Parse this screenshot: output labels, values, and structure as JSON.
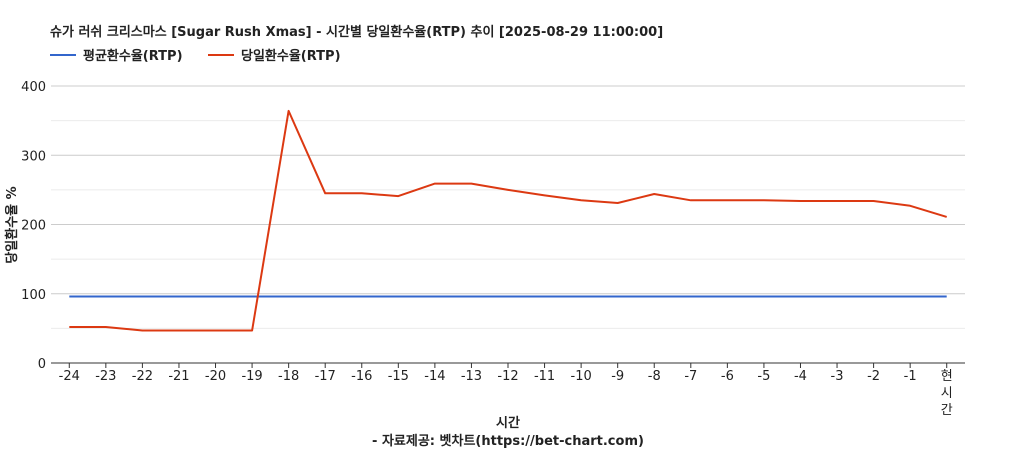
{
  "chart_data": {
    "type": "line",
    "title": "슈가 러쉬 크리스마스 [Sugar Rush Xmas] - 시간별 당일환수율(RTP) 추이 [2025-08-29 11:00:00]",
    "xlabel": "시간",
    "xlabel_sub": "- 자료제공: 벳차트(https://bet-chart.com)",
    "ylabel": "당일환수율 %",
    "ylim": [
      0,
      400
    ],
    "yticks": [
      0,
      100,
      200,
      300,
      400
    ],
    "grid": true,
    "legend_position": "top-left",
    "categories": [
      "-24",
      "-23",
      "-22",
      "-21",
      "-20",
      "-19",
      "-18",
      "-17",
      "-16",
      "-15",
      "-14",
      "-13",
      "-12",
      "-11",
      "-10",
      "-9",
      "-8",
      "-7",
      "-6",
      "-5",
      "-4",
      "-3",
      "-2",
      "-1",
      "현시간"
    ],
    "series": [
      {
        "name": "평균환수율(RTP)",
        "color": "#3366cc",
        "values": [
          96,
          96,
          96,
          96,
          96,
          96,
          96,
          96,
          96,
          96,
          96,
          96,
          96,
          96,
          96,
          96,
          96,
          96,
          96,
          96,
          96,
          96,
          96,
          96,
          96
        ]
      },
      {
        "name": "당일환수율(RTP)",
        "color": "#dc3912",
        "values": [
          52,
          52,
          47,
          47,
          47,
          47,
          364,
          245,
          245,
          241,
          259,
          259,
          250,
          242,
          235,
          231,
          244,
          235,
          235,
          235,
          234,
          234,
          234,
          227,
          211
        ]
      }
    ]
  }
}
